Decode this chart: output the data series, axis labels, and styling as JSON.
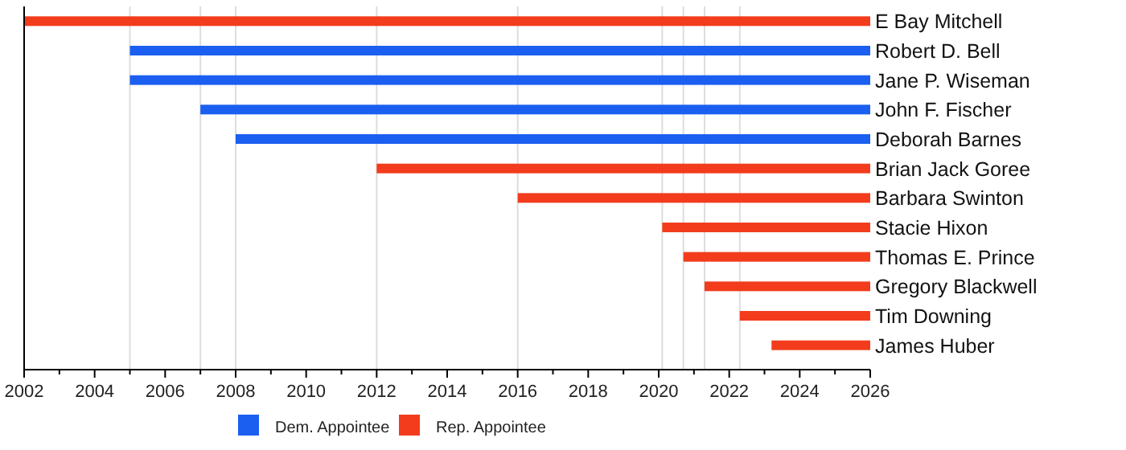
{
  "chart_data": {
    "type": "bar",
    "orientation": "horizontal",
    "categories": [
      "E Bay Mitchell",
      "Robert D. Bell",
      "Jane P. Wiseman",
      "John F. Fischer",
      "Deborah Barnes",
      "Brian Jack Goree",
      "Barbara Swinton",
      "Stacie Hixon",
      "Thomas E. Prince",
      "Gregory Blackwell",
      "Tim Downing",
      "James Huber"
    ],
    "series": [
      {
        "name": "Dem. Appointee",
        "color": "#1a5ff0",
        "base": [
          null,
          2005,
          2005,
          2007,
          2008,
          null,
          null,
          null,
          null,
          null,
          null,
          null
        ],
        "values": [
          null,
          21,
          21,
          19,
          18,
          null,
          null,
          null,
          null,
          null,
          null,
          null
        ]
      },
      {
        "name": "Rep. Appointee",
        "color": "#f23c1c",
        "base": [
          2002,
          null,
          null,
          null,
          null,
          2012,
          2016,
          2020.1,
          2020.7,
          2021.3,
          2022.3,
          2023.2
        ],
        "values": [
          24,
          null,
          null,
          null,
          null,
          14,
          10,
          5.9,
          5.3,
          4.7,
          3.7,
          2.8
        ]
      }
    ],
    "xlim": [
      2002,
      2026
    ],
    "xticks": [
      2002,
      {
        "value": 2003,
        "label": null
      },
      2004,
      {
        "value": 2005,
        "label": null
      },
      2006,
      {
        "value": 2007,
        "label": null
      },
      2008,
      {
        "value": 2009,
        "label": null
      },
      2010,
      {
        "value": 2011,
        "label": null
      },
      2012,
      {
        "value": 2013,
        "label": null
      },
      2014,
      {
        "value": 2015,
        "label": null
      },
      2016,
      {
        "value": 2017,
        "label": null
      },
      2018,
      {
        "value": 2019,
        "label": null
      },
      2020,
      {
        "value": 2021,
        "label": null
      },
      2022,
      {
        "value": 2023,
        "label": null
      },
      2024,
      {
        "value": 2025,
        "label": null
      },
      2026
    ],
    "ref_lines": [
      {
        "axis": "x",
        "value": 2005,
        "color": "#dddddd"
      },
      {
        "axis": "x",
        "value": 2007,
        "color": "#dddddd"
      },
      {
        "axis": "x",
        "value": 2008,
        "color": "#dddddd"
      },
      {
        "axis": "x",
        "value": 2012,
        "color": "#dddddd"
      },
      {
        "axis": "x",
        "value": 2016,
        "color": "#dddddd"
      },
      {
        "axis": "x",
        "value": 2020.1,
        "color": "#dddddd"
      },
      {
        "axis": "x",
        "value": 2020.7,
        "color": "#dddddd"
      },
      {
        "axis": "x",
        "value": 2021.3,
        "color": "#dddddd"
      },
      {
        "axis": "x",
        "value": 2022.3,
        "color": "#dddddd"
      }
    ],
    "legend": "bottom"
  }
}
